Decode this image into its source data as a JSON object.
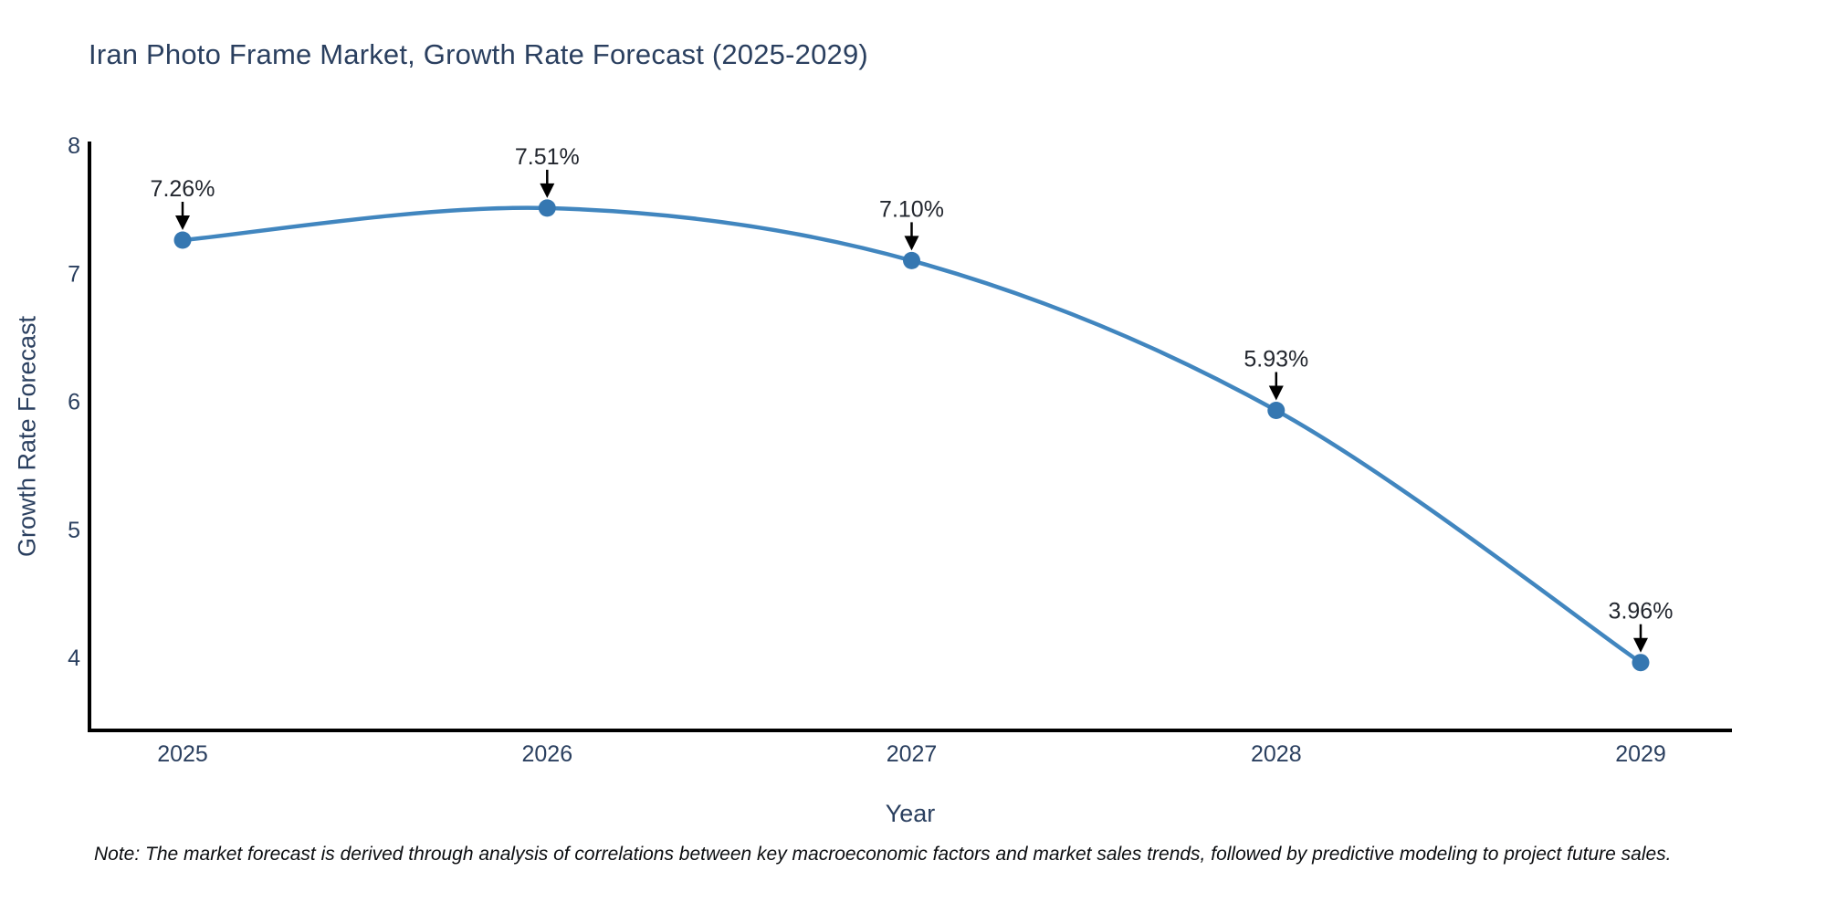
{
  "chart_data": {
    "type": "line",
    "title": "Iran Photo Frame Market, Growth Rate Forecast (2025-2029)",
    "xlabel": "Year",
    "ylabel": "Growth Rate Forecast",
    "categories": [
      "2025",
      "2026",
      "2027",
      "2028",
      "2029"
    ],
    "values": [
      7.26,
      7.51,
      7.1,
      5.93,
      3.96
    ],
    "point_labels": [
      "7.26%",
      "7.51%",
      "7.10%",
      "5.93%",
      "3.96%"
    ],
    "yticks": [
      4,
      5,
      6,
      7,
      8
    ],
    "ylim": [
      3.43,
      8.03
    ],
    "grid": false,
    "legend": "none",
    "line_shape": "spline",
    "line_color": "#4186bf",
    "marker_color": "#3577b1",
    "arrow_color": "#000000",
    "axis_color": "#000000",
    "tick_color": "#2a3f5f",
    "point_label_color": "#22262e",
    "note": "Note: The market forecast is derived through analysis of correlations between key macroeconomic factors and market sales trends, followed by predictive modeling to project future sales."
  }
}
